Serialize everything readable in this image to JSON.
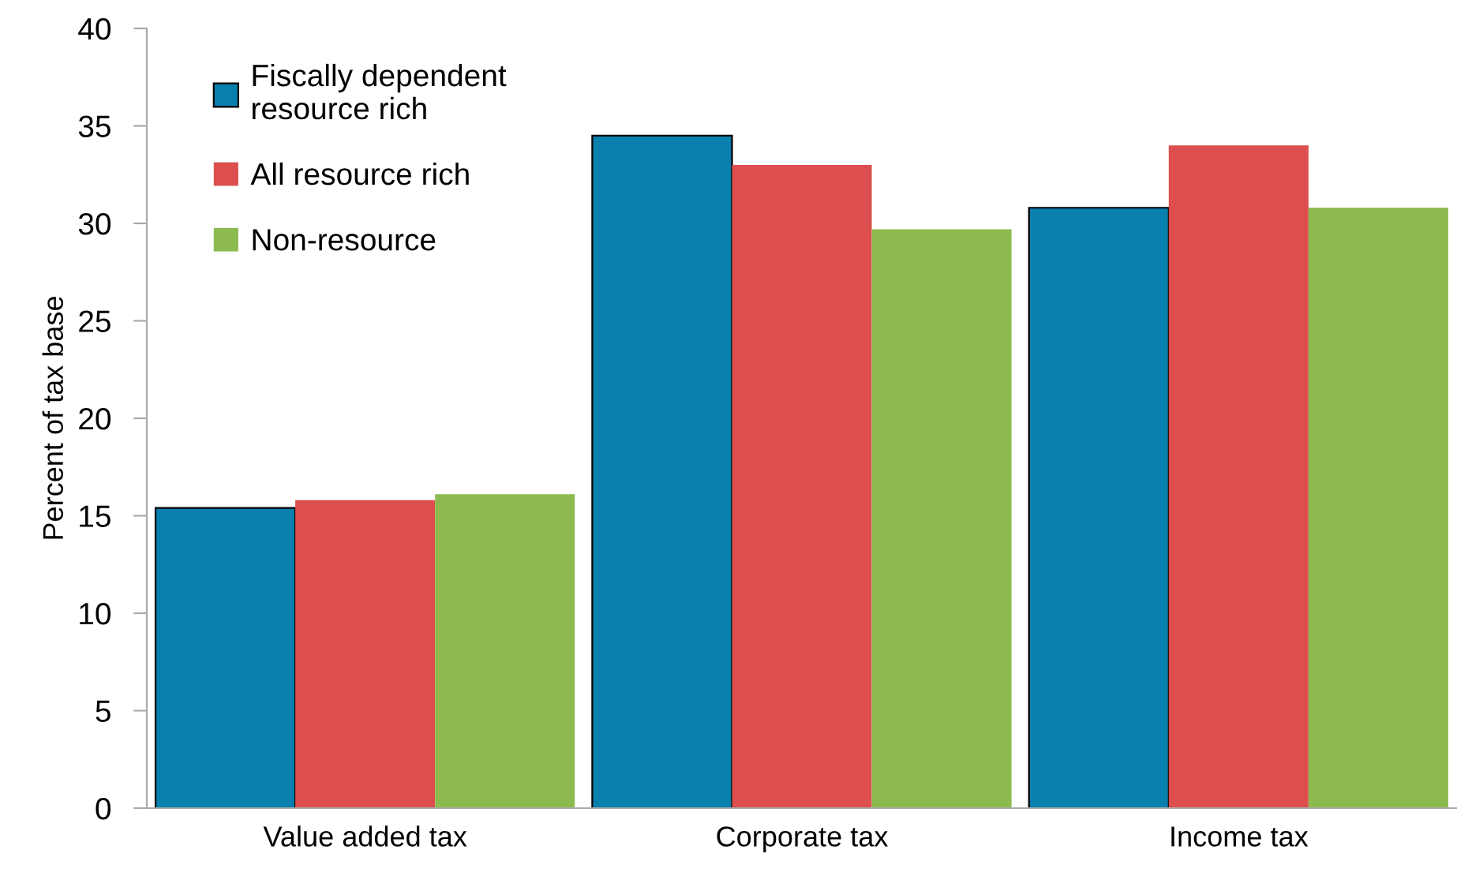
{
  "chart_data": {
    "type": "bar",
    "ylabel": "Percent of tax base",
    "categories": [
      "Value added tax",
      "Corporate tax",
      "Income tax"
    ],
    "series": [
      {
        "name": "Fiscally dependent\nresource rich",
        "color": "#0a80ae",
        "values": [
          15.4,
          34.5,
          30.8
        ]
      },
      {
        "name": "All resource rich",
        "color": "#dc4f4e",
        "values": [
          15.8,
          33.0,
          34.0
        ]
      },
      {
        "name": "Non-resource",
        "color": "#8cba4f",
        "values": [
          16.1,
          29.7,
          30.8
        ]
      }
    ],
    "ylim": [
      0,
      40
    ],
    "yticks": [
      0,
      5,
      10,
      15,
      20,
      25,
      30,
      35,
      40
    ],
    "grid": false,
    "legend": "top left"
  }
}
